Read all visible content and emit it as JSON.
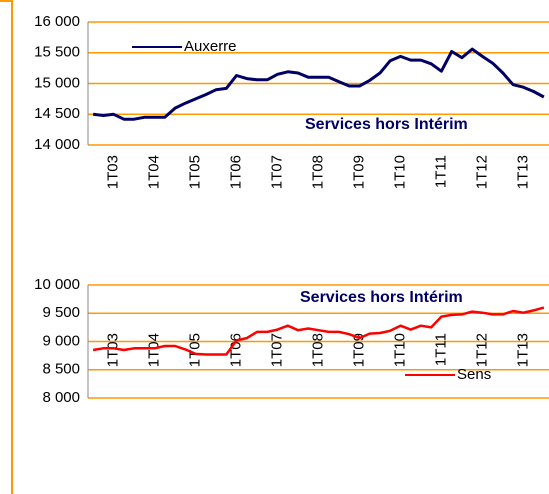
{
  "chart_data": [
    {
      "type": "line",
      "annotation": "Services hors Intérim",
      "legend": "upper-left",
      "grid": true,
      "categories": [
        null,
        null,
        "1T03",
        null,
        null,
        null,
        "1T04",
        null,
        null,
        null,
        "1T05",
        null,
        null,
        null,
        "1T06",
        null,
        null,
        null,
        "1T07",
        null,
        null,
        null,
        "1T08",
        null,
        null,
        null,
        "1T09",
        null,
        null,
        null,
        "1T10",
        null,
        null,
        null,
        "1T11",
        null,
        null,
        null,
        "1T12",
        null,
        null,
        null,
        "1T13",
        null,
        null
      ],
      "series": [
        {
          "name": "Auxerre",
          "color": "#000066",
          "values": [
            14500,
            14480,
            14500,
            14420,
            14420,
            14450,
            14450,
            14450,
            14600,
            14680,
            14750,
            14820,
            14900,
            14920,
            15130,
            15080,
            15060,
            15060,
            15150,
            15190,
            15170,
            15100,
            15100,
            15100,
            15030,
            14960,
            14960,
            15050,
            15170,
            15370,
            15440,
            15380,
            15380,
            15320,
            15200,
            15520,
            15420,
            15560,
            15440,
            15330,
            15170,
            14980,
            14940,
            14870,
            14780
          ]
        }
      ],
      "ylim": [
        14000,
        16000
      ],
      "yticks": [
        {
          "value": 14000,
          "label": "14 000"
        },
        {
          "value": 14500,
          "label": "14 500"
        },
        {
          "value": 15000,
          "label": "15 000"
        },
        {
          "value": 15500,
          "label": "15 500"
        },
        {
          "value": 16000,
          "label": "16 000"
        }
      ]
    },
    {
      "type": "line",
      "annotation": "Services hors Intérim",
      "legend": "lower-right",
      "grid": true,
      "categories": [
        null,
        null,
        "1T03",
        null,
        null,
        null,
        "1T04",
        null,
        null,
        null,
        "1T05",
        null,
        null,
        null,
        "1T06",
        null,
        null,
        null,
        "1T07",
        null,
        null,
        null,
        "1T08",
        null,
        null,
        null,
        "1T09",
        null,
        null,
        null,
        "1T10",
        null,
        null,
        null,
        "1T11",
        null,
        null,
        null,
        "1T12",
        null,
        null,
        null,
        "1T13",
        null,
        null
      ],
      "series": [
        {
          "name": "Sens",
          "color": "#ff0000",
          "values": [
            8850,
            8880,
            8880,
            8850,
            8880,
            8880,
            8880,
            8920,
            8920,
            8860,
            8780,
            8770,
            8770,
            8770,
            9020,
            9060,
            9170,
            9170,
            9210,
            9280,
            9200,
            9230,
            9200,
            9170,
            9170,
            9130,
            9060,
            9140,
            9150,
            9190,
            9280,
            9210,
            9280,
            9250,
            9440,
            9470,
            9480,
            9530,
            9510,
            9480,
            9480,
            9540,
            9510,
            9550,
            9600
          ]
        }
      ],
      "ylim": [
        8000,
        10000
      ],
      "yticks": [
        {
          "value": 8000,
          "label": "8 000"
        },
        {
          "value": 8500,
          "label": "8 500"
        },
        {
          "value": 9000,
          "label": "9 000"
        },
        {
          "value": 9500,
          "label": "9 500"
        },
        {
          "value": 10000,
          "label": "10 000"
        }
      ]
    }
  ]
}
